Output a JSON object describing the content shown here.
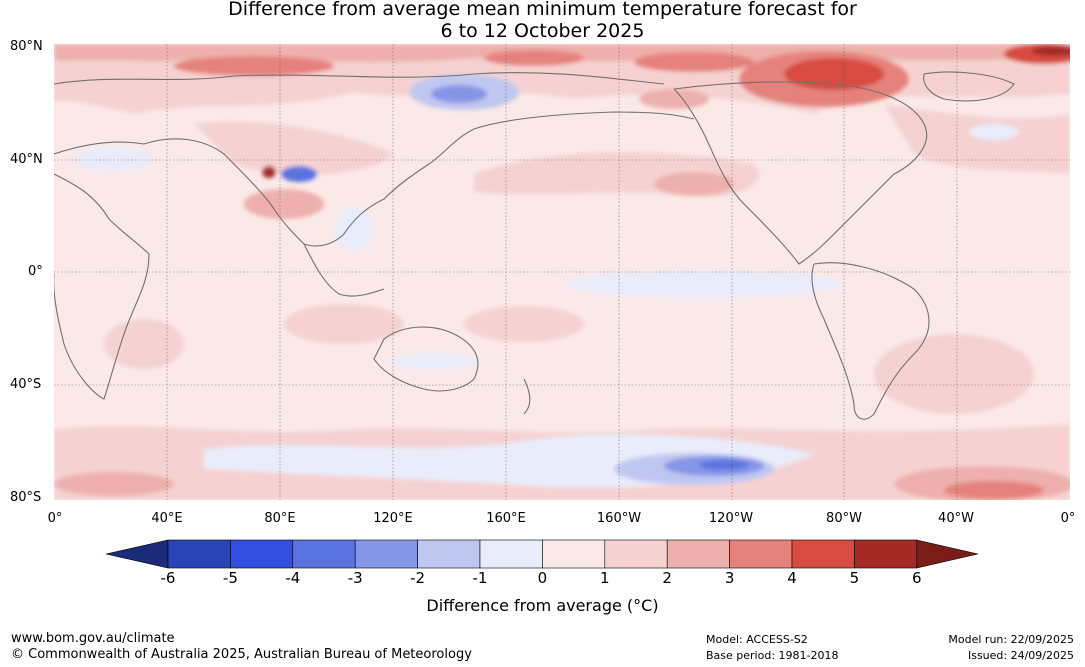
{
  "title": {
    "line1": "Difference from average mean minimum temperature forecast for",
    "line2": "6 to 12 October 2025"
  },
  "latitude_labels": [
    "80°N",
    "40°N",
    "0°",
    "40°S",
    "80°S"
  ],
  "longitude_labels": [
    "0°",
    "40°E",
    "80°E",
    "120°E",
    "160°E",
    "160°W",
    "120°W",
    "80°W",
    "40°W",
    "0°"
  ],
  "colorbar": {
    "ticks": [
      "-6",
      "-5",
      "-4",
      "-3",
      "-2",
      "-1",
      "0",
      "1",
      "2",
      "3",
      "4",
      "5",
      "6"
    ],
    "colors": [
      "#1c2a7a",
      "#2a44b8",
      "#324fe0",
      "#5a73e0",
      "#8696e6",
      "#bfc7f1",
      "#e9ecfa",
      "#fbe9e8",
      "#f5d2d1",
      "#eeb0ac",
      "#e6827c",
      "#d84b40",
      "#a52a26",
      "#7a1c18"
    ],
    "label": "Difference from average (°C)"
  },
  "footer": {
    "url": "www.bom.gov.au/climate",
    "copyright": "© Commonwealth of Australia 2025, Australian Bureau of Meteorology",
    "model": "Model: ACCESS-S2",
    "base_period": "Base period: 1981-2018",
    "model_run": "Model run: 22/09/2025",
    "issued": "Issued: 24/09/2025"
  }
}
